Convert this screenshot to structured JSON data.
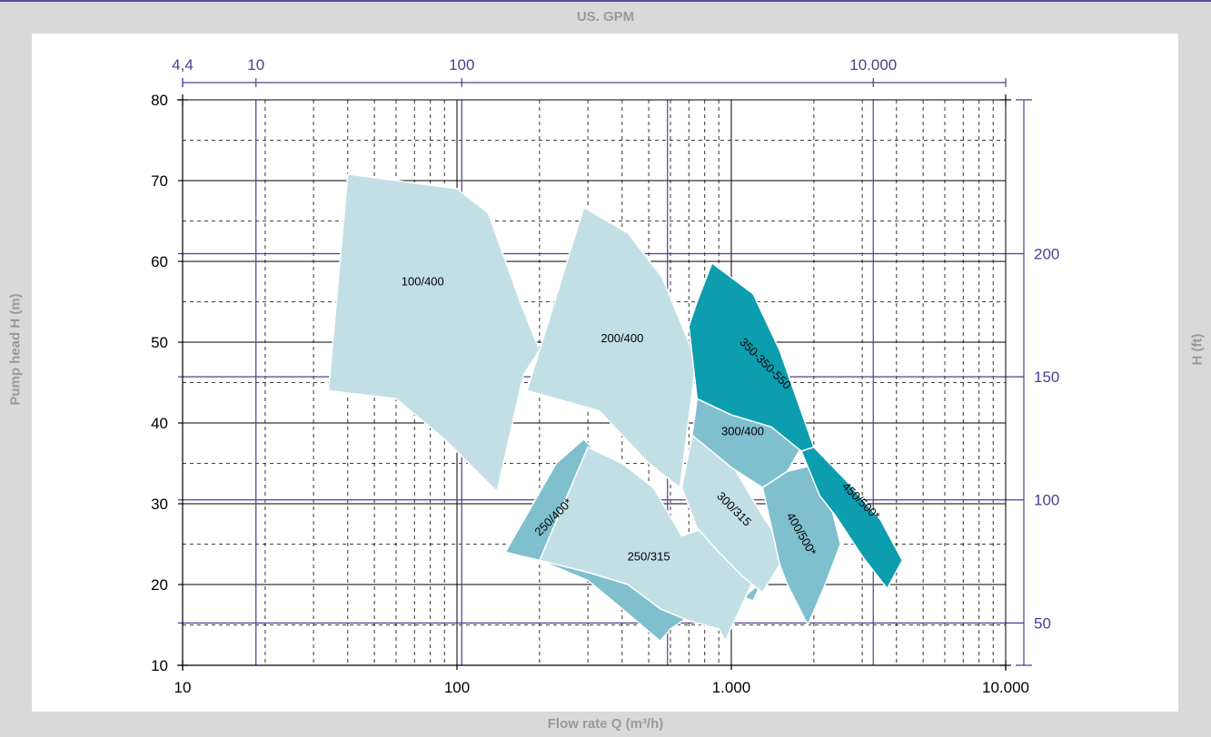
{
  "colors": {
    "background": "#d9d9d9",
    "panel": "#ffffff",
    "secondary_axis": "#4c3f8f",
    "axis_title": "#9a9a9a",
    "light_blue": "#c3dfe6",
    "mid_blue": "#7fbfce",
    "teal": "#0c9daf"
  },
  "chart_data": {
    "type": "area",
    "subtype": "pump performance range chart (selection chart)",
    "x_axis": {
      "label": "Flow rate Q (m³/h)",
      "scale": "log",
      "range": [
        10,
        10000
      ],
      "ticks": [
        {
          "value": 10,
          "label": "10"
        },
        {
          "value": 100,
          "label": "100"
        },
        {
          "value": 1000,
          "label": "1.000"
        },
        {
          "value": 10000,
          "label": "10.000"
        }
      ]
    },
    "x2_axis": {
      "label": "US. GPM",
      "scale": "log",
      "range": [
        4.4,
        44000
      ],
      "ticks": [
        {
          "value": 4.4,
          "label": "4,4"
        },
        {
          "value": 10,
          "label": "10"
        },
        {
          "value": 100,
          "label": "100"
        },
        {
          "value": 10000,
          "label": "10.000"
        }
      ],
      "gridlines": [
        10,
        100,
        1000,
        10000
      ]
    },
    "y_axis": {
      "label": "Pump head H (m)",
      "scale": "linear",
      "range": [
        10,
        80
      ],
      "ticks": [
        10,
        20,
        30,
        40,
        50,
        60,
        70,
        80
      ],
      "minor_step": 5
    },
    "y2_axis": {
      "label": "H (ft)",
      "scale": "linear",
      "range": [
        32.8,
        262.5
      ],
      "ticks": [
        50,
        100,
        150,
        200
      ]
    },
    "grid": true,
    "legend": "none",
    "series": [
      {
        "name": "100/400",
        "color": "#c3dfe6",
        "polygon": [
          [
            34,
            44
          ],
          [
            40,
            70.8
          ],
          [
            100,
            69
          ],
          [
            130,
            66
          ],
          [
            170,
            55
          ],
          [
            200,
            49
          ],
          [
            175,
            46
          ],
          [
            140,
            31.5
          ],
          [
            90,
            38
          ],
          [
            60,
            43
          ]
        ]
      },
      {
        "name": "200/400",
        "color": "#c3dfe6",
        "polygon": [
          [
            290,
            66.7
          ],
          [
            420,
            63.5
          ],
          [
            560,
            58
          ],
          [
            700,
            50
          ],
          [
            750,
            48.5
          ],
          [
            650,
            32
          ],
          [
            500,
            35
          ],
          [
            330,
            41.5
          ],
          [
            180,
            44
          ],
          [
            200,
            49
          ]
        ]
      },
      {
        "name": "250/400*",
        "color": "#7fbfce",
        "polygon": [
          [
            150,
            24
          ],
          [
            230,
            35
          ],
          [
            290,
            38
          ],
          [
            330,
            36
          ],
          [
            400,
            33
          ],
          [
            520,
            30
          ],
          [
            700,
            22
          ],
          [
            1000,
            19
          ],
          [
            1200,
            18
          ],
          [
            1300,
            20.5
          ],
          [
            1000,
            17
          ],
          [
            700,
            16
          ],
          [
            600,
            14.5
          ],
          [
            550,
            13
          ],
          [
            400,
            17
          ],
          [
            300,
            20.5
          ],
          [
            200,
            23
          ]
        ]
      },
      {
        "name": "250/315",
        "color": "#c3dfe6",
        "polygon": [
          [
            200,
            23
          ],
          [
            300,
            37
          ],
          [
            400,
            35
          ],
          [
            520,
            32
          ],
          [
            660,
            26
          ],
          [
            800,
            27
          ],
          [
            1000,
            25
          ],
          [
            1300,
            23
          ],
          [
            950,
            13
          ],
          [
            900,
            14.5
          ],
          [
            700,
            15.5
          ],
          [
            550,
            17
          ],
          [
            420,
            20
          ],
          [
            300,
            21.5
          ]
        ]
      },
      {
        "name": "300/315",
        "color": "#c3dfe6",
        "polygon": [
          [
            660,
            32
          ],
          [
            720,
            38.5
          ],
          [
            1000,
            35
          ],
          [
            1300,
            28.5
          ],
          [
            1600,
            24
          ],
          [
            1300,
            19
          ],
          [
            1100,
            21
          ],
          [
            900,
            24
          ],
          [
            750,
            27
          ]
        ]
      },
      {
        "name": "300/400",
        "color": "#7fbfce",
        "polygon": [
          [
            750,
            43
          ],
          [
            1000,
            41
          ],
          [
            1400,
            40
          ],
          [
            1800,
            37
          ],
          [
            1600,
            34
          ],
          [
            1300,
            32
          ],
          [
            1000,
            34.5
          ],
          [
            720,
            38.5
          ]
        ]
      },
      {
        "name": "400/500*",
        "color": "#7fbfce",
        "polygon": [
          [
            1300,
            32
          ],
          [
            1600,
            34
          ],
          [
            2100,
            35
          ],
          [
            2300,
            30
          ],
          [
            2500,
            25
          ],
          [
            2200,
            20
          ],
          [
            1900,
            15
          ],
          [
            1600,
            20
          ],
          [
            1500,
            22.5
          ]
        ]
      },
      {
        "name": "350-350-550",
        "color": "#0c9daf",
        "polygon": [
          [
            700,
            52
          ],
          [
            750,
            55
          ],
          [
            850,
            59.8
          ],
          [
            1000,
            58
          ],
          [
            1200,
            56
          ],
          [
            1500,
            49
          ],
          [
            2000,
            37
          ],
          [
            1800,
            36.5
          ],
          [
            1400,
            39.5
          ],
          [
            1000,
            41
          ],
          [
            750,
            43
          ]
        ]
      },
      {
        "name": "450/500*",
        "color": "#0c9daf",
        "polygon": [
          [
            1800,
            36.5
          ],
          [
            2000,
            37
          ],
          [
            2600,
            33
          ],
          [
            3500,
            28
          ],
          [
            4200,
            23
          ],
          [
            3700,
            19.5
          ],
          [
            3000,
            23.5
          ],
          [
            2400,
            28.5
          ],
          [
            2100,
            31
          ]
        ]
      }
    ],
    "labels": [
      {
        "text": "100/400",
        "x": 75,
        "y": 57,
        "rotation": 0
      },
      {
        "text": "200/400",
        "x": 400,
        "y": 50,
        "rotation": 0
      },
      {
        "text": "350-350-550",
        "x": 1300,
        "y": 47,
        "rotation": 45
      },
      {
        "text": "300/400",
        "x": 1100,
        "y": 38.5,
        "rotation": 0
      },
      {
        "text": "450/500*",
        "x": 2900,
        "y": 30,
        "rotation": 45
      },
      {
        "text": "250/400*",
        "x": 230,
        "y": 28,
        "rotation": -45
      },
      {
        "text": "300/315",
        "x": 1000,
        "y": 29,
        "rotation": 45
      },
      {
        "text": "400/500*",
        "x": 1750,
        "y": 26,
        "rotation": 60
      },
      {
        "text": "250/315",
        "x": 500,
        "y": 23,
        "rotation": 0
      }
    ]
  }
}
